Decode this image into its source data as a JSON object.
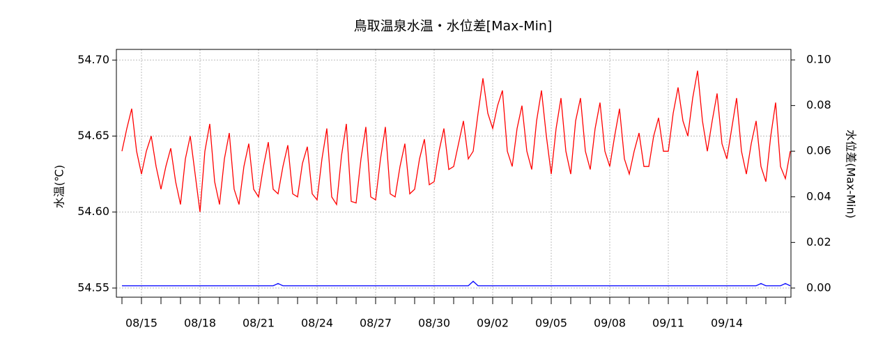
{
  "chart_data": {
    "type": "line",
    "title": "鳥取温泉水温・水位差[Max-Min]",
    "ylabel": "水温(℃)",
    "y2label": "水位差(Max-Min)",
    "categories": [
      null,
      null,
      null,
      null,
      "08/15",
      null,
      null,
      null,
      null,
      null,
      null,
      null,
      null,
      null,
      null,
      null,
      "08/18",
      null,
      null,
      null,
      null,
      null,
      null,
      null,
      null,
      null,
      null,
      null,
      "08/21",
      null,
      null,
      null,
      null,
      null,
      null,
      null,
      null,
      null,
      null,
      null,
      "08/24",
      null,
      null,
      null,
      null,
      null,
      null,
      null,
      null,
      null,
      null,
      null,
      "08/27",
      null,
      null,
      null,
      null,
      null,
      null,
      null,
      null,
      null,
      null,
      null,
      "08/30",
      null,
      null,
      null,
      null,
      null,
      null,
      null,
      null,
      null,
      null,
      null,
      "09/02",
      null,
      null,
      null,
      null,
      null,
      null,
      null,
      null,
      null,
      null,
      null,
      "09/05",
      null,
      null,
      null,
      null,
      null,
      null,
      null,
      null,
      null,
      null,
      null,
      "09/08",
      null,
      null,
      null,
      null,
      null,
      null,
      null,
      null,
      null,
      null,
      null,
      "09/11",
      null,
      null,
      null,
      null,
      null,
      null,
      null,
      null,
      null,
      null,
      null,
      "09/14",
      null,
      null,
      null,
      null,
      null,
      null,
      null,
      null,
      null,
      null,
      null,
      null,
      null
    ],
    "ylim": [
      54.544,
      54.707
    ],
    "yticks": [
      54.55,
      {
        "value": 54.6,
        "label": "54.60"
      },
      54.65,
      {
        "value": 54.7,
        "label": "54.70"
      }
    ],
    "y2lim": [
      -0.004,
      0.1046
    ],
    "y2ticks": [
      {
        "value": 0,
        "label": "0.00"
      },
      0.02,
      0.04,
      0.06,
      0.08,
      {
        "value": 0.1,
        "label": "0.10"
      }
    ],
    "grid": true,
    "series": [
      {
        "name": "水温",
        "color": "#ff0000",
        "axis": "y",
        "values": [
          54.64,
          54.655,
          54.668,
          54.64,
          54.625,
          54.64,
          54.65,
          54.63,
          54.615,
          54.63,
          54.642,
          54.62,
          54.605,
          54.635,
          54.65,
          54.625,
          54.6,
          54.64,
          54.658,
          54.62,
          54.605,
          54.635,
          54.652,
          54.615,
          54.605,
          54.63,
          54.645,
          54.615,
          54.61,
          54.63,
          54.646,
          54.615,
          54.612,
          54.63,
          54.644,
          54.612,
          54.61,
          54.632,
          54.643,
          54.612,
          54.608,
          54.635,
          54.655,
          54.61,
          54.605,
          54.637,
          54.658,
          54.607,
          54.606,
          54.635,
          54.656,
          54.61,
          54.608,
          54.635,
          54.656,
          54.612,
          54.61,
          54.63,
          54.645,
          54.612,
          54.615,
          54.635,
          54.648,
          54.618,
          54.62,
          54.64,
          54.655,
          54.628,
          54.63,
          54.645,
          54.66,
          54.635,
          54.64,
          54.665,
          54.688,
          54.665,
          54.655,
          54.67,
          54.68,
          54.64,
          54.63,
          54.655,
          54.67,
          54.64,
          54.628,
          54.66,
          54.68,
          54.65,
          54.625,
          54.655,
          54.675,
          54.64,
          54.625,
          54.66,
          54.675,
          54.64,
          54.628,
          54.655,
          54.672,
          54.64,
          54.63,
          54.65,
          54.668,
          54.635,
          54.625,
          54.64,
          54.652,
          54.63,
          54.63,
          54.65,
          54.662,
          54.64,
          54.64,
          54.665,
          54.682,
          54.66,
          54.65,
          54.675,
          54.693,
          54.66,
          54.64,
          54.66,
          54.678,
          54.645,
          54.635,
          54.655,
          54.675,
          54.64,
          54.625,
          54.645,
          54.66,
          54.63,
          54.62,
          54.65,
          54.672,
          54.63,
          54.622,
          54.64
        ]
      },
      {
        "name": "水位差",
        "color": "#0000ff",
        "axis": "y2",
        "values": [
          0.001,
          0.001,
          0.001,
          0.001,
          0.001,
          0.001,
          0.001,
          0.001,
          0.001,
          0.001,
          0.001,
          0.001,
          0.001,
          0.001,
          0.001,
          0.001,
          0.001,
          0.001,
          0.001,
          0.001,
          0.001,
          0.001,
          0.001,
          0.001,
          0.001,
          0.001,
          0.001,
          0.001,
          0.001,
          0.001,
          0.001,
          0.001,
          0.002,
          0.001,
          0.001,
          0.001,
          0.001,
          0.001,
          0.001,
          0.001,
          0.001,
          0.001,
          0.001,
          0.001,
          0.001,
          0.001,
          0.001,
          0.001,
          0.001,
          0.001,
          0.001,
          0.001,
          0.001,
          0.001,
          0.001,
          0.001,
          0.001,
          0.001,
          0.001,
          0.001,
          0.001,
          0.001,
          0.001,
          0.001,
          0.001,
          0.001,
          0.001,
          0.001,
          0.001,
          0.001,
          0.001,
          0.001,
          0.003,
          0.001,
          0.001,
          0.001,
          0.001,
          0.001,
          0.001,
          0.001,
          0.001,
          0.001,
          0.001,
          0.001,
          0.001,
          0.001,
          0.001,
          0.001,
          0.001,
          0.001,
          0.001,
          0.001,
          0.001,
          0.001,
          0.001,
          0.001,
          0.001,
          0.001,
          0.001,
          0.001,
          0.001,
          0.001,
          0.001,
          0.001,
          0.001,
          0.001,
          0.001,
          0.001,
          0.001,
          0.001,
          0.001,
          0.001,
          0.001,
          0.001,
          0.001,
          0.001,
          0.001,
          0.001,
          0.001,
          0.001,
          0.001,
          0.001,
          0.001,
          0.001,
          0.001,
          0.001,
          0.001,
          0.001,
          0.001,
          0.001,
          0.001,
          0.002,
          0.001,
          0.001,
          0.001,
          0.001,
          0.002,
          0.001
        ]
      }
    ]
  }
}
